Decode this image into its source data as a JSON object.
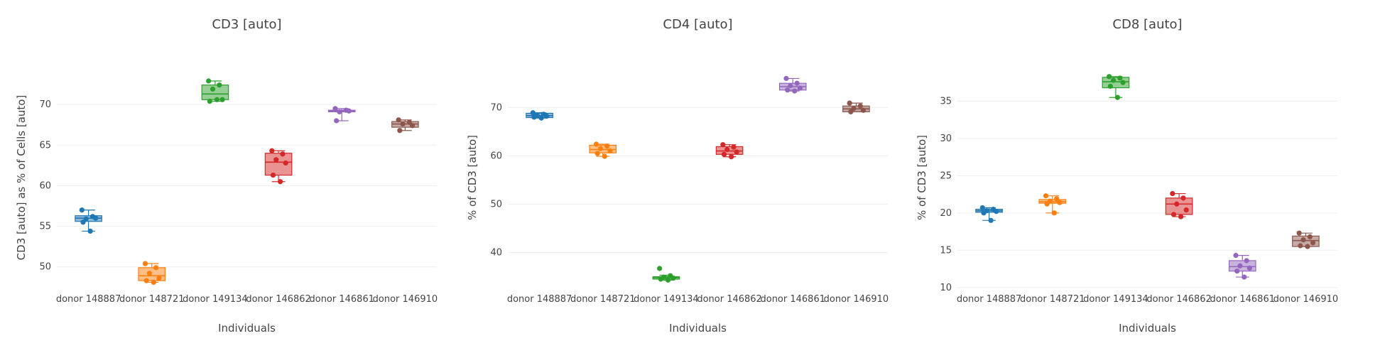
{
  "chart_data": [
    {
      "type": "box",
      "title": "CD3 [auto]",
      "xlabel": "Individuals",
      "ylabel": "CD3 [auto] as % of Cells [auto]",
      "ylim": [
        47,
        75
      ],
      "yticks": [
        50,
        55,
        60,
        65,
        70
      ],
      "categories": [
        "donor 148887",
        "donor 148721",
        "donor 149134",
        "donor 146862",
        "donor 146861",
        "donor 146910"
      ],
      "series": [
        {
          "points": [
            57.0,
            56.2,
            55.9,
            56.0,
            55.5,
            54.4
          ],
          "box": {
            "q1": 55.6,
            "median": 56.0,
            "q3": 56.3,
            "min": 54.4,
            "max": 57.0
          }
        },
        {
          "points": [
            50.4,
            49.9,
            49.2,
            48.6,
            48.3,
            48.1
          ],
          "box": {
            "q1": 48.3,
            "median": 48.9,
            "q3": 49.9,
            "min": 48.1,
            "max": 50.4
          }
        },
        {
          "points": [
            72.9,
            72.4,
            71.9,
            70.6,
            70.4,
            70.6
          ],
          "box": {
            "q1": 70.6,
            "median": 71.3,
            "q3": 72.4,
            "min": 70.4,
            "max": 72.9
          }
        },
        {
          "points": [
            64.3,
            63.9,
            63.2,
            62.8,
            61.3,
            60.5
          ],
          "box": {
            "q1": 61.3,
            "median": 62.9,
            "q3": 64.0,
            "min": 60.5,
            "max": 64.3
          }
        },
        {
          "points": [
            69.5,
            69.3,
            69.1,
            69.2,
            68.0
          ],
          "box": {
            "q1": 69.1,
            "median": 69.2,
            "q3": 69.3,
            "min": 68.0,
            "max": 69.5
          }
        },
        {
          "points": [
            68.1,
            67.8,
            67.6,
            67.4,
            66.8
          ],
          "box": {
            "q1": 67.2,
            "median": 67.6,
            "q3": 67.9,
            "min": 66.8,
            "max": 68.1
          }
        }
      ]
    },
    {
      "type": "box",
      "title": "CD4 [auto]",
      "xlabel": "Individuals",
      "ylabel": "% of CD3 [auto]",
      "ylim": [
        32,
        79
      ],
      "yticks": [
        40,
        50,
        60,
        70
      ],
      "categories": [
        "donor 148887",
        "donor 148721",
        "donor 149134",
        "donor 146862",
        "donor 146861",
        "donor 146910"
      ],
      "series": [
        {
          "points": [
            68.9,
            68.6,
            68.4,
            68.2,
            68.0,
            67.8
          ],
          "box": {
            "q1": 67.9,
            "median": 68.3,
            "q3": 68.8,
            "min": 67.8,
            "max": 68.9
          }
        },
        {
          "points": [
            62.4,
            62.0,
            61.5,
            61.0,
            60.5,
            59.9
          ],
          "box": {
            "q1": 60.6,
            "median": 61.3,
            "q3": 62.2,
            "min": 59.9,
            "max": 62.4
          }
        },
        {
          "points": [
            36.7,
            35.2,
            34.9,
            34.7,
            34.5,
            34.3
          ],
          "box": {
            "q1": 34.5,
            "median": 34.8,
            "q3": 35.0,
            "min": 34.3,
            "max": 35.3
          }
        },
        {
          "points": [
            62.3,
            61.8,
            61.3,
            60.8,
            60.3,
            59.8
          ],
          "box": {
            "q1": 60.3,
            "median": 61.0,
            "q3": 61.9,
            "min": 59.8,
            "max": 62.3
          }
        },
        {
          "points": [
            76.0,
            75.0,
            74.5,
            74.0,
            73.6,
            73.4
          ],
          "box": {
            "q1": 73.6,
            "median": 74.3,
            "q3": 75.0,
            "min": 73.4,
            "max": 76.0
          }
        },
        {
          "points": [
            70.9,
            70.3,
            69.8,
            69.4,
            69.1
          ],
          "box": {
            "q1": 69.1,
            "median": 69.7,
            "q3": 70.3,
            "min": 69.1,
            "max": 70.9
          }
        }
      ]
    },
    {
      "type": "box",
      "title": "CD8 [auto]",
      "xlabel": "Individuals",
      "ylabel": "% of CD3 [auto]",
      "ylim": [
        9.5,
        40
      ],
      "yticks": [
        10,
        15,
        20,
        25,
        30,
        35
      ],
      "categories": [
        "donor 148887",
        "donor 148721",
        "donor 149134",
        "donor 146862",
        "donor 146861",
        "donor 146910"
      ],
      "series": [
        {
          "points": [
            20.7,
            20.5,
            20.3,
            20.2,
            20.0,
            19.0
          ],
          "box": {
            "q1": 20.1,
            "median": 20.3,
            "q3": 20.5,
            "min": 19.0,
            "max": 20.7
          }
        },
        {
          "points": [
            22.3,
            21.9,
            21.6,
            21.4,
            21.2,
            20.0
          ],
          "box": {
            "q1": 21.3,
            "median": 21.5,
            "q3": 21.8,
            "min": 20.0,
            "max": 22.3
          }
        },
        {
          "points": [
            38.3,
            38.1,
            37.8,
            37.5,
            37.0,
            35.5
          ],
          "box": {
            "q1": 36.8,
            "median": 37.6,
            "q3": 38.2,
            "min": 35.5,
            "max": 38.3
          }
        },
        {
          "points": [
            22.6,
            22.0,
            21.2,
            20.4,
            19.8,
            19.5
          ],
          "box": {
            "q1": 19.8,
            "median": 21.2,
            "q3": 22.0,
            "min": 19.5,
            "max": 22.6
          }
        },
        {
          "points": [
            14.3,
            13.6,
            12.9,
            12.6,
            12.2,
            11.4
          ],
          "box": {
            "q1": 12.2,
            "median": 12.8,
            "q3": 13.6,
            "min": 11.4,
            "max": 14.3
          }
        },
        {
          "points": [
            17.3,
            16.8,
            16.4,
            16.0,
            15.6,
            15.5
          ],
          "box": {
            "q1": 15.5,
            "median": 16.3,
            "q3": 16.9,
            "min": 15.5,
            "max": 17.3
          }
        }
      ]
    }
  ],
  "colors": [
    "#1f77b4",
    "#ff7f0e",
    "#2ca02c",
    "#d62728",
    "#9467bd",
    "#8c564b"
  ]
}
